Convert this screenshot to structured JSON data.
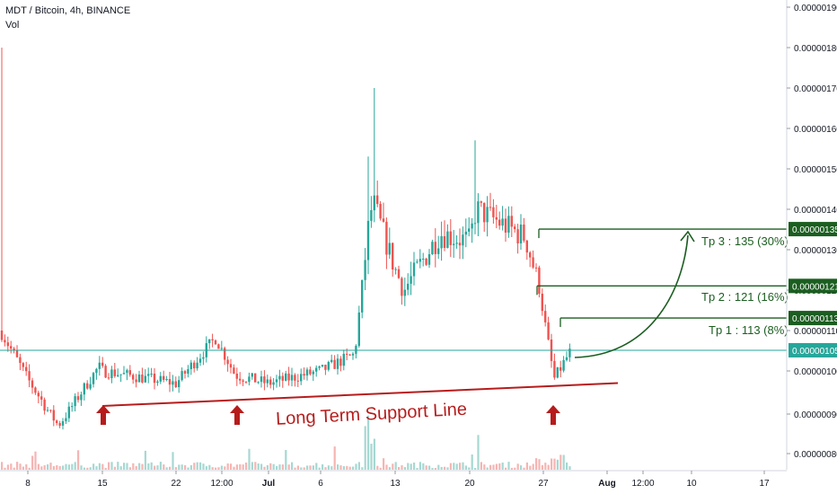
{
  "header": {
    "symbol_line": "MDT / Bitcoin, 4h, BINANCE",
    "volume_label": "Vol"
  },
  "colors": {
    "up": "#26a69a",
    "down": "#ef5350",
    "vol_up": "#a6d8d2",
    "vol_down": "#f5b5b3",
    "support": "#b71c1c",
    "target": "#1b5e20",
    "last_price": "#26a69a"
  },
  "chart_data": {
    "type": "candlestick",
    "x_ticks": [
      "8",
      "15",
      "22",
      "12:00",
      "Jul",
      "6",
      "13",
      "20",
      "27",
      "Aug",
      "12:00",
      "10",
      "17"
    ],
    "y_ticks": [
      "0.00000190",
      "0.00000180",
      "0.00000170",
      "0.00000160",
      "0.00000150",
      "0.00000140",
      "0.00000130",
      "0.00000120",
      "0.00000110",
      "0.00000100",
      "0.00000090",
      "0.00000080"
    ],
    "ylim": [
      7.6e-07,
      1.93e-06
    ],
    "y_scale": "log",
    "price_badges": [
      {
        "value": 1.35e-06,
        "label": "0.00000135",
        "style": "target"
      },
      {
        "value": 1.21e-06,
        "label": "0.00000121",
        "style": "target"
      },
      {
        "value": 1.13e-06,
        "label": "0.00000113",
        "style": "target"
      },
      {
        "value": 1.05e-06,
        "label": "0.00000105",
        "style": "last"
      }
    ],
    "targets": [
      {
        "label": "Tp 3 : 135 (30%)",
        "value": 1.35e-06
      },
      {
        "label": "Tp 2 : 121 (16%)",
        "value": 1.21e-06
      },
      {
        "label": "Tp 1 : 113 (8%)",
        "value": 1.13e-06
      }
    ],
    "annotation": "Long Term Support Line",
    "support_line": {
      "from": {
        "x": "15",
        "y": 9.2e-07
      },
      "to": {
        "x": "Aug",
        "y": 9.7e-07
      }
    },
    "support_touches": [
      "15",
      "12:00",
      "27"
    ],
    "waypoints": [
      {
        "x": "start",
        "close": 1.1e-06
      },
      {
        "x": "8",
        "close": 9.8e-07
      },
      {
        "x": "8+",
        "close": 8.7e-07
      },
      {
        "x": "15-",
        "close": 1.01e-06
      },
      {
        "x": "15",
        "close": 1e-06
      },
      {
        "x": "22",
        "close": 9.7e-07
      },
      {
        "x": "12:00-",
        "close": 1.08e-06
      },
      {
        "x": "12:00",
        "close": 9.9e-07
      },
      {
        "x": "Jul",
        "close": 9.7e-07
      },
      {
        "x": "6",
        "close": 1e-06
      },
      {
        "x": "6+",
        "close": 1.04e-06
      },
      {
        "x": "13-",
        "close": 1.35e-06
      },
      {
        "x": "13-",
        "close": 1.42e-06
      },
      {
        "x": "13",
        "close": 1.25e-06
      },
      {
        "x": "13+",
        "close": 1.2e-06
      },
      {
        "x": "20-",
        "close": 1.34e-06
      },
      {
        "x": "20",
        "close": 1.32e-06
      },
      {
        "x": "20+",
        "close": 1.4e-06
      },
      {
        "x": "27-",
        "close": 1.33e-06
      },
      {
        "x": "27-",
        "close": 1.21e-06
      },
      {
        "x": "27-",
        "close": 1.1e-06
      },
      {
        "x": "27",
        "close": 9.8e-07
      },
      {
        "x": "27+",
        "close": 1.05e-06
      }
    ]
  }
}
